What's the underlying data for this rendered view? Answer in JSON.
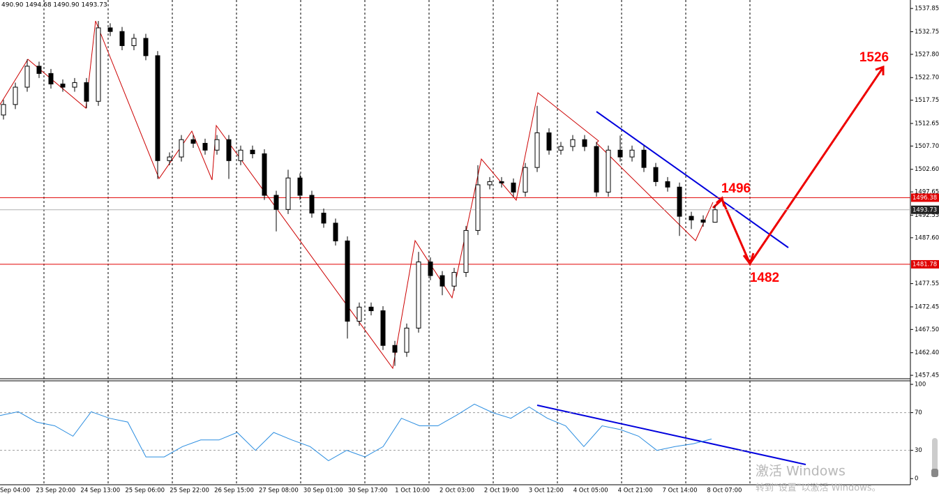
{
  "info": "490.90 1494.68 1490.90 1493.73",
  "chart_data": [
    {
      "type": "candlestick",
      "open": [
        1514.5,
        1516.8,
        1520.6,
        1525.2,
        1523.6,
        1521.3,
        1520.6,
        1521.6,
        1517.5,
        1533.6,
        1532.8,
        1529.7,
        1531.3,
        1527.5,
        1504.5,
        1505.3,
        1509.1,
        1508.3,
        1506.8,
        1509.1,
        1504.5,
        1506.8,
        1506.0,
        1496.9,
        1493.8,
        1500.7,
        1496.9,
        1493.0,
        1490.8,
        1486.9,
        1469.3,
        1472.4,
        1471.6,
        1464.0,
        1462.5,
        1467.8,
        1482.3,
        1479.3,
        1477.0,
        1480.0,
        1489.2,
        1499.2,
        1499.9,
        1499.6,
        1497.6,
        1503.0,
        1510.6,
        1506.8,
        1507.6,
        1509.1,
        1507.6,
        1497.6,
        1506.8,
        1505.3,
        1506.8,
        1503.0,
        1499.9,
        1498.7,
        1492.3,
        1491.5,
        1491.0
      ],
      "high": [
        1517.8,
        1521.6,
        1526.7,
        1526.2,
        1524.6,
        1522.3,
        1522.6,
        1522.6,
        1535.1,
        1534.6,
        1533.8,
        1532.3,
        1532.3,
        1528.5,
        1506.3,
        1510.1,
        1510.1,
        1509.3,
        1510.1,
        1510.1,
        1507.8,
        1507.8,
        1507.0,
        1497.9,
        1502.5,
        1501.7,
        1497.9,
        1494.0,
        1491.8,
        1487.9,
        1473.4,
        1473.4,
        1472.6,
        1465.0,
        1468.8,
        1484.5,
        1483.3,
        1480.3,
        1481.0,
        1490.2,
        1503.5,
        1500.9,
        1500.9,
        1500.6,
        1504.0,
        1516.5,
        1511.6,
        1508.6,
        1510.1,
        1510.1,
        1508.6,
        1507.8,
        1510.0,
        1507.8,
        1507.8,
        1504.0,
        1500.9,
        1499.7,
        1493.3,
        1492.5,
        1494.68
      ],
      "low": [
        1513.5,
        1515.8,
        1519.6,
        1522.6,
        1520.3,
        1519.6,
        1519.6,
        1516.0,
        1516.5,
        1531.8,
        1528.7,
        1528.7,
        1526.5,
        1500.5,
        1503.5,
        1504.3,
        1507.3,
        1505.8,
        1505.8,
        1500.5,
        1503.5,
        1505.0,
        1495.9,
        1489.0,
        1492.8,
        1495.9,
        1492.0,
        1489.8,
        1485.9,
        1465.5,
        1468.3,
        1470.6,
        1463.0,
        1459.5,
        1461.5,
        1466.8,
        1478.3,
        1475.0,
        1476.0,
        1479.0,
        1488.2,
        1498.2,
        1498.6,
        1496.6,
        1496.6,
        1502.0,
        1505.8,
        1505.8,
        1506.6,
        1506.6,
        1496.6,
        1496.6,
        1504.3,
        1504.3,
        1502.0,
        1498.9,
        1497.7,
        1488.0,
        1489.5,
        1490.0,
        1490.9
      ],
      "close": [
        1516.8,
        1520.6,
        1525.2,
        1523.6,
        1521.3,
        1520.6,
        1521.6,
        1517.5,
        1533.6,
        1532.8,
        1529.7,
        1531.3,
        1527.5,
        1504.5,
        1505.3,
        1509.1,
        1508.3,
        1506.8,
        1509.1,
        1504.5,
        1506.8,
        1506.0,
        1496.9,
        1493.8,
        1500.7,
        1496.9,
        1493.0,
        1490.8,
        1486.9,
        1469.3,
        1472.4,
        1471.6,
        1464.0,
        1462.5,
        1467.8,
        1482.3,
        1479.3,
        1477.0,
        1480.0,
        1489.2,
        1499.2,
        1499.9,
        1499.6,
        1497.6,
        1503.0,
        1510.6,
        1506.8,
        1507.6,
        1509.1,
        1507.6,
        1497.6,
        1506.8,
        1505.3,
        1506.8,
        1503.0,
        1499.9,
        1498.7,
        1492.3,
        1491.5,
        1491.0,
        1493.73
      ],
      "ylim": [
        1456.7,
        1539.4
      ],
      "yticks": [
        1537.85,
        1532.75,
        {
          "value": 1527.8,
          "label": "1527.80"
        },
        {
          "value": 1522.7,
          "label": "1522.70"
        },
        1517.75,
        1512.65,
        {
          "value": 1507.7,
          "label": "1507.70"
        },
        {
          "value": 1502.6,
          "label": "1502.60"
        },
        1497.65,
        1492.55,
        {
          "value": 1487.6,
          "label": "1487.60"
        },
        {
          "value": 1477.55,
          "label": "1477.55"
        },
        1472.45,
        {
          "value": 1467.5,
          "label": "1467.50"
        },
        {
          "value": 1462.4,
          "label": "1462.40"
        },
        1457.45
      ],
      "hlines": [
        {
          "value": 1496.38,
          "color": "#e00000"
        },
        {
          "value": 1493.73,
          "color": "#b0b0b0"
        },
        {
          "value": 1481.78,
          "color": "#e00000"
        }
      ],
      "annotations": [
        "1496",
        "1482",
        "1526"
      ],
      "x_labels": [
        "Sep 04:00",
        "23 Sep 20:00",
        "24 Sep 13:00",
        "25 Sep 06:00",
        "25 Sep 22:00",
        "26 Sep 15:00",
        "27 Sep 08:00",
        "30 Sep 01:00",
        "30 Sep 17:00",
        "1 Oct 10:00",
        "2 Oct 03:00",
        "2 Oct 19:00",
        "3 Oct 12:00",
        "4 Oct 05:00",
        "4 Oct 21:00",
        "7 Oct 14:00",
        "8 Oct 07:00"
      ]
    },
    {
      "type": "line",
      "color": "#2a8de0",
      "values": [
        67,
        71,
        60,
        56,
        45,
        71,
        64,
        60,
        23,
        23,
        34,
        41,
        41,
        49,
        30,
        49,
        41,
        34,
        19,
        30,
        23,
        34,
        64,
        56,
        56,
        67,
        79,
        70,
        64,
        76,
        64,
        56,
        34,
        56,
        52,
        45,
        30,
        34,
        37,
        42
      ],
      "ylim": [
        -6.5,
        103
      ],
      "yticks": [
        100,
        70,
        30,
        0
      ]
    }
  ],
  "watermark": {
    "title": "激活 Windows",
    "subtitle": "转到“设置”以激活 Windows。"
  }
}
